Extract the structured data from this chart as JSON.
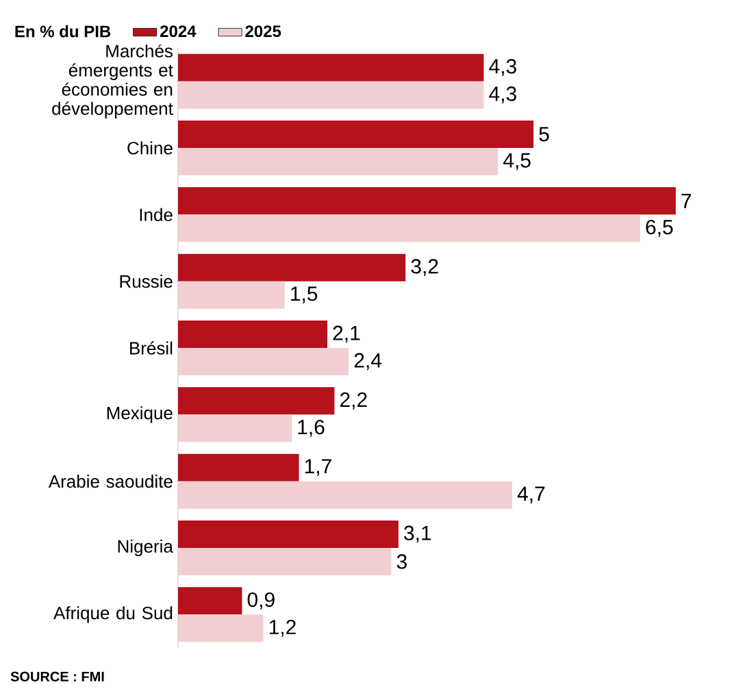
{
  "chart_data": {
    "type": "bar",
    "orientation": "horizontal",
    "legend": "top left",
    "legend_title": "En % du PIB",
    "categories": [
      "Marchés émergents et économies en développement",
      "Chine",
      "Inde",
      "Russie",
      "Brésil",
      "Mexique",
      "Arabie saoudite",
      "Nigeria",
      "Afrique du Sud"
    ],
    "series": [
      {
        "name": "2024",
        "color": "#b5121b",
        "values": [
          4.3,
          5,
          7,
          3.2,
          2.1,
          2.2,
          1.7,
          3.1,
          0.9
        ],
        "value_labels": [
          "4,3",
          "5",
          "7",
          "3,2",
          "2,1",
          "2,2",
          "1,7",
          "3,1",
          "0,9"
        ]
      },
      {
        "name": "2025",
        "color": "#f2cfd2",
        "values": [
          4.3,
          4.5,
          6.5,
          1.5,
          2.4,
          1.6,
          4.7,
          3,
          1.2
        ],
        "value_labels": [
          "4,3",
          "4,5",
          "6,5",
          "1,5",
          "2,4",
          "1,6",
          "4,7",
          "3",
          "1,2"
        ]
      }
    ],
    "annotations": [
      "SOURCE : FMI"
    ]
  }
}
